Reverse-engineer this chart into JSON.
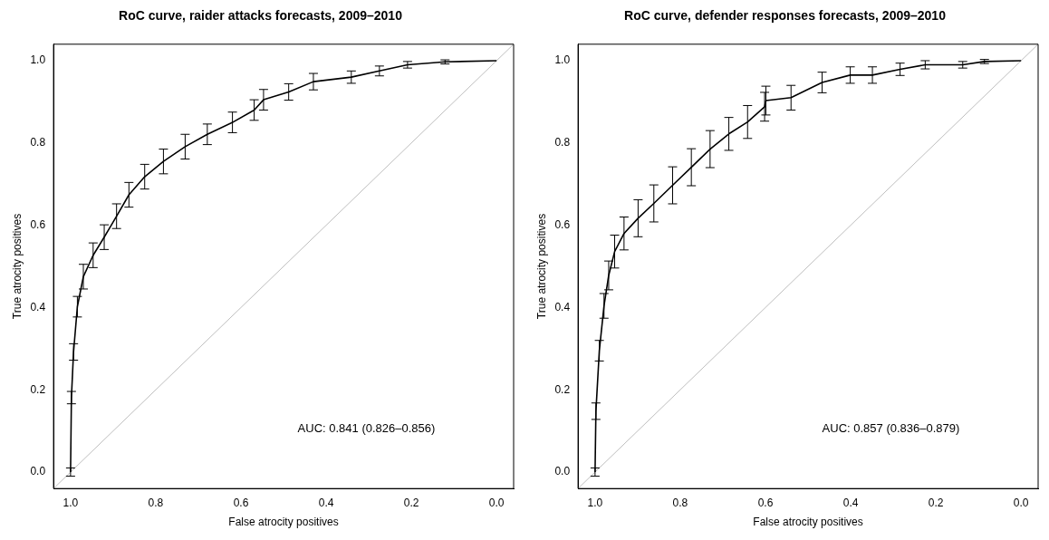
{
  "chart_data": [
    {
      "type": "line",
      "title": "RoC curve, raider attacks forecasts, 2009–2010",
      "xlabel": "False atrocity positives",
      "ylabel": "True atrocity positives",
      "xlim": [
        1.04,
        -0.04
      ],
      "ylim": [
        -0.04,
        1.04
      ],
      "xticks": [
        {
          "value": 1,
          "label": "1.0"
        },
        {
          "value": 0.8,
          "label": "0.8"
        },
        {
          "value": 0.6,
          "label": "0.6"
        },
        {
          "value": 0.4,
          "label": "0.4"
        },
        {
          "value": 0.2,
          "label": "0.2"
        },
        {
          "value": 0,
          "label": "0.0"
        }
      ],
      "yticks": [
        {
          "value": 0,
          "label": "0.0"
        },
        {
          "value": 0.2,
          "label": "0.2"
        },
        {
          "value": 0.4,
          "label": "0.4"
        },
        {
          "value": 0.6,
          "label": "0.6"
        },
        {
          "value": 0.8,
          "label": "0.8"
        },
        {
          "value": 1,
          "label": "1.0"
        }
      ],
      "grid": false,
      "legend": false,
      "marker": "none",
      "line_style": "solid",
      "annotations": [
        "AUC: 0.841 (0.826–0.856)"
      ],
      "series": [
        {
          "color": "#000000",
          "x": [
            1.0,
            0.998,
            0.993,
            0.984,
            0.97,
            0.947,
            0.921,
            0.892,
            0.863,
            0.826,
            0.782,
            0.731,
            0.679,
            0.62,
            0.569,
            0.547,
            0.488,
            0.43,
            0.341,
            0.275,
            0.209,
            0.121,
            0.0
          ],
          "values": [
            0.0,
            0.181,
            0.292,
            0.402,
            0.475,
            0.527,
            0.571,
            0.622,
            0.674,
            0.718,
            0.755,
            0.791,
            0.821,
            0.85,
            0.88,
            0.905,
            0.924,
            0.949,
            0.96,
            0.975,
            0.99,
            0.997,
            1.0
          ],
          "errors": [
            0.01,
            0.015,
            0.02,
            0.025,
            0.03,
            0.03,
            0.03,
            0.03,
            0.03,
            0.03,
            0.03,
            0.03,
            0.025,
            0.025,
            0.025,
            0.025,
            0.02,
            0.02,
            0.015,
            0.012,
            0.008,
            0.005,
            null
          ]
        },
        {
          "type": "line",
          "color": "#bebebe",
          "x": [
            1.04,
            -0.04
          ],
          "values": [
            -0.04,
            1.04
          ]
        }
      ]
    },
    {
      "type": "line",
      "title": "RoC curve, defender responses forecasts, 2009–2010",
      "xlabel": "False atrocity positives",
      "ylabel": "True atrocity positives",
      "xlim": [
        1.04,
        -0.04
      ],
      "ylim": [
        -0.04,
        1.04
      ],
      "xticks": [
        {
          "value": 1,
          "label": "1.0"
        },
        {
          "value": 0.8,
          "label": "0.8"
        },
        {
          "value": 0.6,
          "label": "0.6"
        },
        {
          "value": 0.4,
          "label": "0.4"
        },
        {
          "value": 0.2,
          "label": "0.2"
        },
        {
          "value": 0,
          "label": "0.0"
        }
      ],
      "yticks": [
        {
          "value": 0,
          "label": "0.0"
        },
        {
          "value": 0.2,
          "label": "0.2"
        },
        {
          "value": 0.4,
          "label": "0.4"
        },
        {
          "value": 0.6,
          "label": "0.6"
        },
        {
          "value": 0.8,
          "label": "0.8"
        },
        {
          "value": 1,
          "label": "1.0"
        }
      ],
      "grid": false,
      "legend": false,
      "marker": "none",
      "line_style": "solid",
      "annotations": [
        "AUC: 0.857 (0.836–0.879)"
      ],
      "series": [
        {
          "color": "#000000",
          "x": [
            1.0,
            0.998,
            0.99,
            0.979,
            0.968,
            0.954,
            0.932,
            0.899,
            0.862,
            0.818,
            0.774,
            0.73,
            0.686,
            0.642,
            0.602,
            0.599,
            0.54,
            0.467,
            0.401,
            0.349,
            0.284,
            0.225,
            0.137,
            0.086,
            0.0
          ],
          "values": [
            0.0,
            0.148,
            0.295,
            0.404,
            0.478,
            0.536,
            0.58,
            0.617,
            0.653,
            0.697,
            0.741,
            0.785,
            0.822,
            0.851,
            0.888,
            0.903,
            0.91,
            0.947,
            0.965,
            0.965,
            0.979,
            0.99,
            0.99,
            0.998,
            1.0
          ],
          "errors": [
            0.01,
            0.02,
            0.025,
            0.03,
            0.035,
            0.04,
            0.04,
            0.045,
            0.045,
            0.045,
            0.045,
            0.045,
            0.04,
            0.04,
            0.035,
            0.035,
            0.03,
            0.025,
            0.02,
            0.02,
            0.015,
            0.01,
            0.008,
            0.005,
            null
          ]
        },
        {
          "type": "line",
          "color": "#bebebe",
          "x": [
            1.04,
            -0.04
          ],
          "values": [
            -0.04,
            1.04
          ]
        }
      ]
    }
  ]
}
